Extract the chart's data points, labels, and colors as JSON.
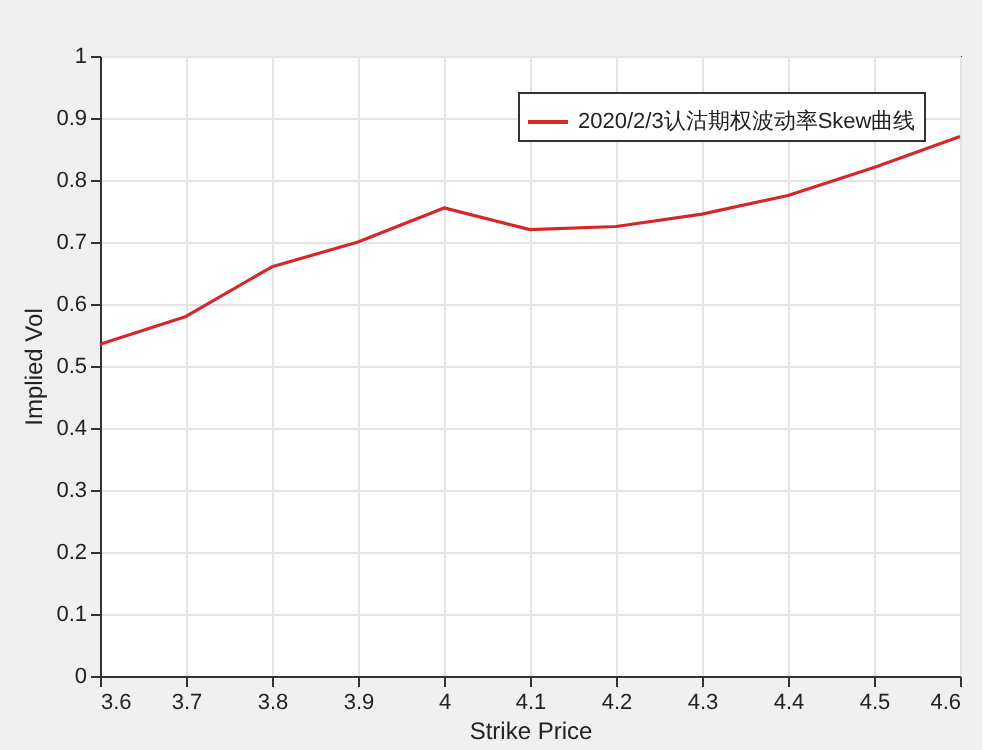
{
  "chart_data": {
    "type": "line",
    "xlabel": "Strike Price",
    "ylabel": "Implied Vol",
    "x": [
      3.6,
      3.7,
      3.8,
      3.9,
      4.0,
      4.1,
      4.2,
      4.3,
      4.4,
      4.5,
      4.6
    ],
    "series": [
      {
        "name": "2020/2/3认沽期权波动率Skew曲线",
        "color": "#d62728",
        "values": [
          0.535,
          0.58,
          0.66,
          0.7,
          0.755,
          0.72,
          0.725,
          0.745,
          0.775,
          0.82,
          0.87
        ]
      }
    ],
    "xlim": [
      3.6,
      4.6
    ],
    "xticks": [
      3.6,
      3.7,
      3.8,
      3.9,
      {
        "value": 4.0,
        "label": "4"
      },
      4.1,
      4.2,
      4.3,
      4.4,
      4.5,
      4.6
    ],
    "ylim": [
      0,
      1
    ],
    "yticks": [
      {
        "value": 0,
        "label": "0"
      },
      0.1,
      0.2,
      0.3,
      0.4,
      0.5,
      0.6,
      0.7,
      0.8,
      0.9,
      {
        "value": 1,
        "label": "1"
      }
    ],
    "grid": true,
    "legend": "top right",
    "marker": "none",
    "line_style": "solid"
  }
}
